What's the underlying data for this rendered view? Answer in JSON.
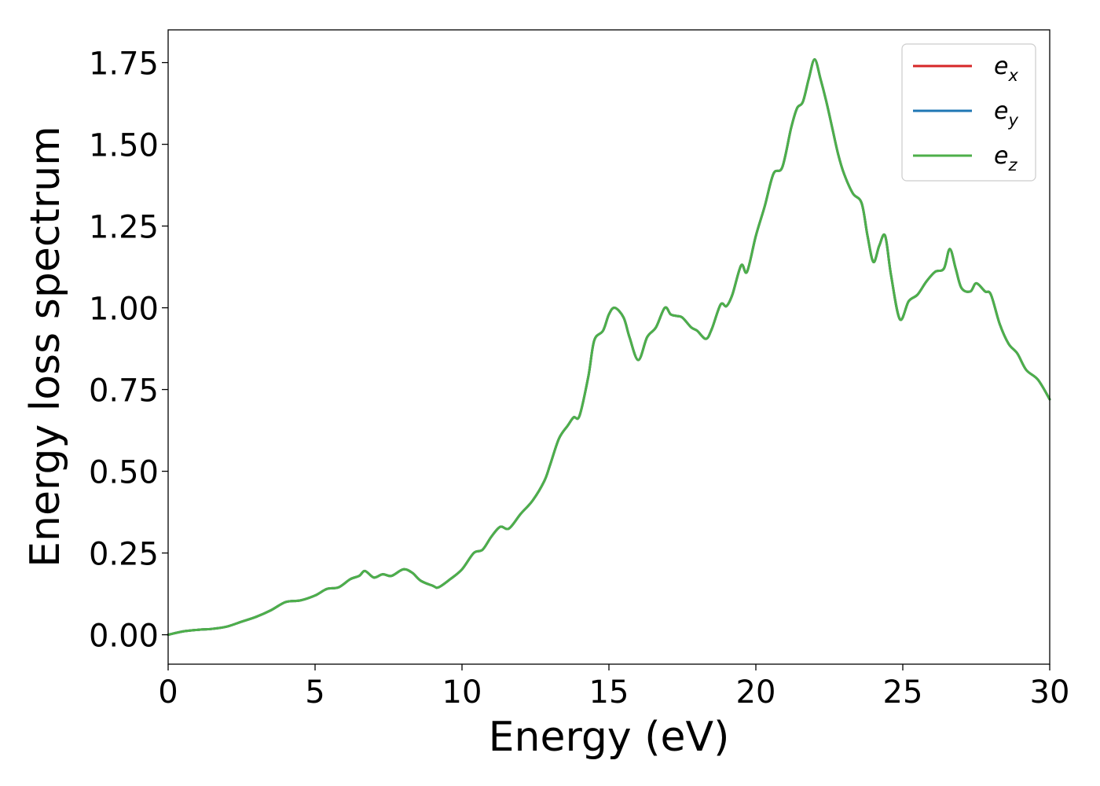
{
  "chart_data": {
    "type": "line",
    "title": "",
    "xlabel": "Energy (eV)",
    "ylabel": "Energy loss spectrum",
    "xlim": [
      0,
      30
    ],
    "ylim": [
      -0.09,
      1.85
    ],
    "xticks": [
      0,
      5,
      10,
      15,
      20,
      25,
      30
    ],
    "xtick_labels": [
      "0",
      "5",
      "10",
      "15",
      "20",
      "25",
      "30"
    ],
    "yticks": [
      0.0,
      0.25,
      0.5,
      0.75,
      1.0,
      1.25,
      1.5,
      1.75
    ],
    "ytick_labels": [
      "0.00",
      "0.25",
      "0.50",
      "0.75",
      "1.00",
      "1.25",
      "1.50",
      "1.75"
    ],
    "grid": false,
    "legend_position": "top-right",
    "x": [
      0,
      0.5,
      1.0,
      1.5,
      2.0,
      2.5,
      3.0,
      3.5,
      4.0,
      4.5,
      5.0,
      5.4,
      5.8,
      6.2,
      6.5,
      6.7,
      7.0,
      7.3,
      7.6,
      8.0,
      8.3,
      8.6,
      9.0,
      9.2,
      9.6,
      10.0,
      10.4,
      10.7,
      11.0,
      11.3,
      11.6,
      12.0,
      12.4,
      12.8,
      13.0,
      13.3,
      13.6,
      13.8,
      14.0,
      14.3,
      14.5,
      14.8,
      15.0,
      15.2,
      15.5,
      15.7,
      16.0,
      16.3,
      16.6,
      16.9,
      17.1,
      17.3,
      17.5,
      17.8,
      18.0,
      18.3,
      18.5,
      18.8,
      19.0,
      19.2,
      19.5,
      19.7,
      20.0,
      20.3,
      20.6,
      20.9,
      21.2,
      21.4,
      21.6,
      21.8,
      22.0,
      22.2,
      22.4,
      22.6,
      22.8,
      23.0,
      23.3,
      23.6,
      23.8,
      24.0,
      24.2,
      24.4,
      24.6,
      24.9,
      25.2,
      25.5,
      25.8,
      26.1,
      26.4,
      26.6,
      26.8,
      27.0,
      27.3,
      27.5,
      27.8,
      28.0,
      28.3,
      28.6,
      28.9,
      29.2,
      29.6,
      30.0
    ],
    "series": [
      {
        "name": "e_x",
        "color": "#d62728",
        "values": [
          0.0,
          0.01,
          0.015,
          0.018,
          0.025,
          0.04,
          0.055,
          0.075,
          0.1,
          0.105,
          0.12,
          0.14,
          0.145,
          0.17,
          0.18,
          0.195,
          0.175,
          0.185,
          0.18,
          0.2,
          0.19,
          0.165,
          0.15,
          0.145,
          0.17,
          0.2,
          0.25,
          0.26,
          0.3,
          0.33,
          0.325,
          0.37,
          0.41,
          0.47,
          0.52,
          0.6,
          0.64,
          0.665,
          0.67,
          0.79,
          0.9,
          0.93,
          0.98,
          1.0,
          0.97,
          0.91,
          0.84,
          0.91,
          0.94,
          1.0,
          0.98,
          0.975,
          0.97,
          0.94,
          0.93,
          0.905,
          0.935,
          1.01,
          1.005,
          1.04,
          1.13,
          1.11,
          1.22,
          1.31,
          1.41,
          1.43,
          1.55,
          1.61,
          1.63,
          1.7,
          1.76,
          1.7,
          1.63,
          1.55,
          1.47,
          1.41,
          1.35,
          1.32,
          1.22,
          1.14,
          1.19,
          1.22,
          1.1,
          0.965,
          1.02,
          1.04,
          1.08,
          1.11,
          1.12,
          1.18,
          1.12,
          1.06,
          1.05,
          1.075,
          1.05,
          1.04,
          0.95,
          0.89,
          0.86,
          0.81,
          0.78,
          0.72
        ]
      },
      {
        "name": "e_y",
        "color": "#1f77b4",
        "values": [
          0.0,
          0.01,
          0.015,
          0.018,
          0.025,
          0.04,
          0.055,
          0.075,
          0.1,
          0.105,
          0.12,
          0.14,
          0.145,
          0.17,
          0.18,
          0.195,
          0.175,
          0.185,
          0.18,
          0.2,
          0.19,
          0.165,
          0.15,
          0.145,
          0.17,
          0.2,
          0.25,
          0.26,
          0.3,
          0.33,
          0.325,
          0.37,
          0.41,
          0.47,
          0.52,
          0.6,
          0.64,
          0.665,
          0.67,
          0.79,
          0.9,
          0.93,
          0.98,
          1.0,
          0.97,
          0.91,
          0.84,
          0.91,
          0.94,
          1.0,
          0.98,
          0.975,
          0.97,
          0.94,
          0.93,
          0.905,
          0.935,
          1.01,
          1.005,
          1.04,
          1.13,
          1.11,
          1.22,
          1.31,
          1.41,
          1.43,
          1.55,
          1.61,
          1.63,
          1.7,
          1.76,
          1.7,
          1.63,
          1.55,
          1.47,
          1.41,
          1.35,
          1.32,
          1.22,
          1.14,
          1.19,
          1.22,
          1.1,
          0.965,
          1.02,
          1.04,
          1.08,
          1.11,
          1.12,
          1.18,
          1.12,
          1.06,
          1.05,
          1.075,
          1.05,
          1.04,
          0.95,
          0.89,
          0.86,
          0.81,
          0.78,
          0.72
        ]
      },
      {
        "name": "e_z",
        "color": "#4daf4a",
        "values": [
          0.0,
          0.01,
          0.015,
          0.018,
          0.025,
          0.04,
          0.055,
          0.075,
          0.1,
          0.105,
          0.12,
          0.14,
          0.145,
          0.17,
          0.18,
          0.195,
          0.175,
          0.185,
          0.18,
          0.2,
          0.19,
          0.165,
          0.15,
          0.145,
          0.17,
          0.2,
          0.25,
          0.26,
          0.3,
          0.33,
          0.325,
          0.37,
          0.41,
          0.47,
          0.52,
          0.6,
          0.64,
          0.665,
          0.67,
          0.79,
          0.9,
          0.93,
          0.98,
          1.0,
          0.97,
          0.91,
          0.84,
          0.91,
          0.94,
          1.0,
          0.98,
          0.975,
          0.97,
          0.94,
          0.93,
          0.905,
          0.935,
          1.01,
          1.005,
          1.04,
          1.13,
          1.11,
          1.22,
          1.31,
          1.41,
          1.43,
          1.55,
          1.61,
          1.63,
          1.7,
          1.76,
          1.7,
          1.63,
          1.55,
          1.47,
          1.41,
          1.35,
          1.32,
          1.22,
          1.14,
          1.19,
          1.22,
          1.1,
          0.965,
          1.02,
          1.04,
          1.08,
          1.11,
          1.12,
          1.18,
          1.12,
          1.06,
          1.05,
          1.075,
          1.05,
          1.04,
          0.95,
          0.89,
          0.86,
          0.81,
          0.78,
          0.72
        ]
      }
    ],
    "legend": [
      {
        "base": "e",
        "sub": "x"
      },
      {
        "base": "e",
        "sub": "y"
      },
      {
        "base": "e",
        "sub": "z"
      }
    ]
  }
}
